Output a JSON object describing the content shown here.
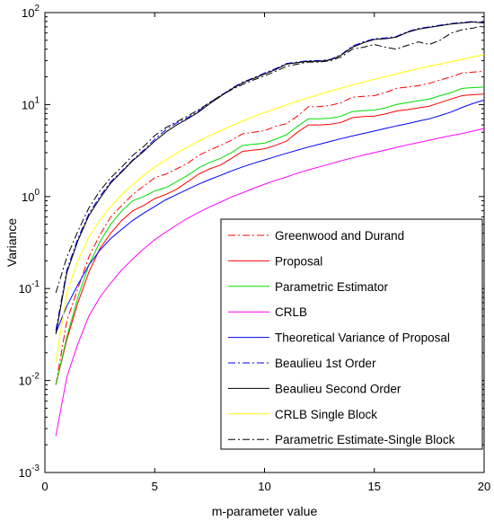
{
  "chart_data": {
    "type": "line",
    "title": "",
    "xlabel": "m-parameter value",
    "ylabel": "Variance",
    "xlim": [
      0,
      20
    ],
    "ylim": [
      0.001,
      100
    ],
    "yscale": "log",
    "grid": false,
    "legend_position": "bottom-right",
    "x_ticks": [
      0,
      5,
      10,
      15,
      20
    ],
    "y_ticks": [
      0.001,
      0.01,
      0.1,
      1,
      10,
      100
    ],
    "x_tick_labels": [
      "0",
      "5",
      "10",
      "15",
      "20"
    ],
    "y_tick_labels": [
      {
        "base": "10",
        "exp": "-3"
      },
      {
        "base": "10",
        "exp": "-2"
      },
      {
        "base": "10",
        "exp": "-1"
      },
      {
        "base": "10",
        "exp": "0"
      },
      {
        "base": "10",
        "exp": "1"
      },
      {
        "base": "10",
        "exp": "2"
      }
    ],
    "x": [
      0.5,
      1,
      1.5,
      2,
      2.5,
      3,
      3.5,
      4,
      4.5,
      5,
      5.5,
      6,
      6.5,
      7,
      7.5,
      8,
      8.5,
      9,
      9.5,
      10,
      10.5,
      11,
      11.5,
      12,
      12.5,
      13,
      13.5,
      14,
      14.5,
      15,
      15.5,
      16,
      16.5,
      17,
      17.5,
      18,
      18.5,
      19,
      19.5,
      20
    ],
    "series": [
      {
        "name": "Greenwood and Durand",
        "color": "#ff0000",
        "dash": "dashdot",
        "values": [
          0.009,
          0.045,
          0.1,
          0.22,
          0.38,
          0.6,
          0.8,
          1.05,
          1.3,
          1.6,
          1.75,
          2.0,
          2.3,
          2.8,
          3.2,
          3.6,
          4.1,
          4.8,
          5.0,
          5.2,
          5.8,
          6.2,
          7.5,
          9.5,
          9.5,
          9.8,
          10.5,
          12.0,
          12.3,
          12.5,
          13.5,
          15.0,
          15.5,
          16.0,
          17.0,
          18.5,
          20.0,
          22.0,
          22.5,
          23.0
        ]
      },
      {
        "name": "Proposal",
        "color": "#ff0000",
        "dash": "solid",
        "values": [
          0.009,
          0.028,
          0.07,
          0.15,
          0.27,
          0.4,
          0.55,
          0.7,
          0.8,
          0.95,
          1.05,
          1.2,
          1.45,
          1.75,
          2.0,
          2.2,
          2.6,
          3.1,
          3.2,
          3.3,
          3.6,
          4.0,
          5.0,
          6.0,
          6.0,
          6.1,
          6.4,
          7.2,
          7.4,
          7.5,
          7.9,
          8.5,
          8.8,
          9.2,
          9.6,
          10.5,
          11.5,
          12.5,
          12.8,
          13.0
        ]
      },
      {
        "name": "Parametric Estimator",
        "color": "#00dd00",
        "dash": "solid",
        "values": [
          0.009,
          0.03,
          0.08,
          0.18,
          0.32,
          0.5,
          0.7,
          0.9,
          1.0,
          1.15,
          1.25,
          1.45,
          1.7,
          2.05,
          2.35,
          2.6,
          3.0,
          3.6,
          3.7,
          3.8,
          4.2,
          4.7,
          5.8,
          7.0,
          7.0,
          7.1,
          7.5,
          8.4,
          8.6,
          8.7,
          9.2,
          10.0,
          10.5,
          11.0,
          11.5,
          12.5,
          13.5,
          15.0,
          15.3,
          15.5
        ]
      },
      {
        "name": "CRLB",
        "color": "#ff00ff",
        "dash": "solid",
        "values": [
          0.0025,
          0.011,
          0.025,
          0.05,
          0.08,
          0.115,
          0.16,
          0.21,
          0.27,
          0.34,
          0.41,
          0.49,
          0.58,
          0.67,
          0.77,
          0.87,
          0.99,
          1.1,
          1.23,
          1.36,
          1.5,
          1.63,
          1.8,
          1.95,
          2.1,
          2.27,
          2.45,
          2.63,
          2.82,
          3.0,
          3.2,
          3.42,
          3.64,
          3.86,
          4.1,
          4.34,
          4.6,
          4.85,
          5.15,
          5.5
        ]
      },
      {
        "name": "Theoretical Variance of Proposal",
        "color": "#0000ff",
        "dash": "solid",
        "values": [
          0.033,
          0.065,
          0.11,
          0.18,
          0.26,
          0.35,
          0.44,
          0.55,
          0.66,
          0.78,
          0.92,
          1.05,
          1.2,
          1.36,
          1.53,
          1.7,
          1.9,
          2.1,
          2.3,
          2.5,
          2.72,
          2.95,
          3.2,
          3.45,
          3.7,
          3.98,
          4.26,
          4.55,
          4.85,
          5.15,
          5.5,
          5.85,
          6.2,
          6.6,
          7.0,
          7.6,
          8.3,
          9.3,
          10.3,
          11.2
        ]
      },
      {
        "name": "Beaulieu 1st Order",
        "color": "#0000ff",
        "dash": "dashdot",
        "values": [
          0.035,
          0.16,
          0.35,
          0.65,
          1.0,
          1.45,
          1.9,
          2.5,
          3.2,
          4.2,
          5.3,
          6.3,
          7.2,
          8.5,
          10.5,
          12.5,
          15.0,
          17.5,
          19.5,
          22.0,
          24.5,
          28.0,
          29.0,
          30.0,
          30.0,
          31.0,
          35.0,
          43.0,
          48.0,
          52.0,
          53.0,
          55.0,
          62.0,
          67.0,
          70.0,
          73.0,
          76.0,
          78.0,
          80.0,
          78.0
        ]
      },
      {
        "name": "Beaulieu Second Order",
        "color": "#000000",
        "dash": "solid",
        "values": [
          0.032,
          0.15,
          0.33,
          0.62,
          0.95,
          1.4,
          1.85,
          2.45,
          3.1,
          4.0,
          5.0,
          6.0,
          7.0,
          8.3,
          10.2,
          12.3,
          14.8,
          17.2,
          19.2,
          21.5,
          24.0,
          27.5,
          28.5,
          29.5,
          29.5,
          30.5,
          34.5,
          42.0,
          47.0,
          51.0,
          52.0,
          54.0,
          61.0,
          66.0,
          69.0,
          72.0,
          75.0,
          77.0,
          79.0,
          77.0
        ]
      },
      {
        "name": "CRLB Single Block",
        "color": "#ffff00",
        "dash": "solid",
        "values": [
          0.016,
          0.09,
          0.2,
          0.36,
          0.55,
          0.78,
          1.05,
          1.35,
          1.7,
          2.1,
          2.5,
          2.95,
          3.45,
          4.0,
          4.6,
          5.2,
          5.9,
          6.6,
          7.4,
          8.2,
          9.0,
          9.9,
          10.9,
          11.9,
          12.9,
          14.0,
          15.1,
          16.3,
          17.5,
          18.8,
          20.1,
          21.5,
          23.0,
          24.5,
          26.0,
          27.6,
          29.3,
          31.0,
          33.0,
          35.0
        ]
      },
      {
        "name": "Parametric Estimate-Single Block",
        "color": "#000000",
        "dash": "dashdot",
        "values": [
          0.09,
          0.22,
          0.42,
          0.75,
          1.15,
          1.6,
          2.1,
          2.8,
          3.5,
          4.6,
          5.6,
          6.5,
          7.5,
          8.8,
          10.5,
          12.5,
          14.5,
          16.5,
          18.5,
          20.5,
          23.0,
          26.0,
          27.5,
          29.0,
          29.0,
          30.0,
          33.0,
          40.0,
          42.0,
          45.0,
          42.0,
          40.0,
          44.0,
          48.0,
          45.0,
          50.0,
          60.0,
          65.0,
          68.0,
          72.0
        ]
      }
    ]
  }
}
